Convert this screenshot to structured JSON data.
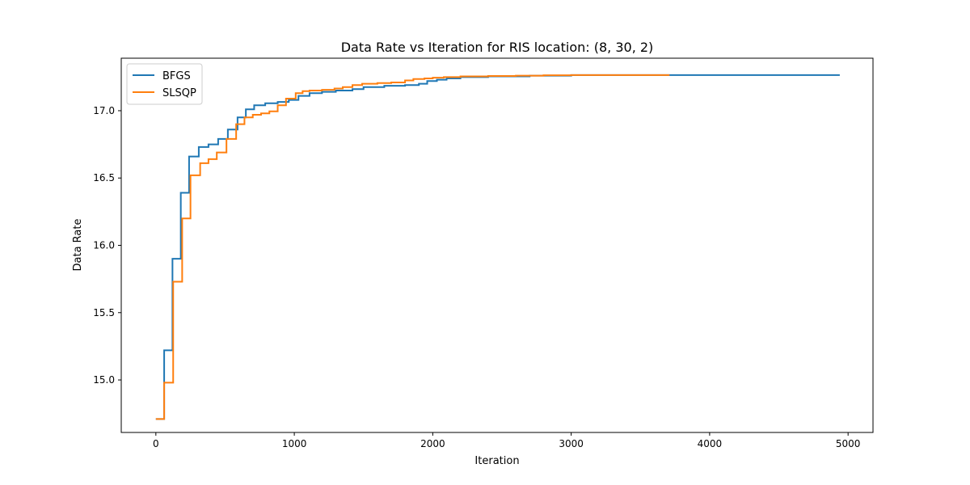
{
  "chart_data": {
    "type": "line",
    "title": "Data Rate vs Iteration for RIS location: (8, 30, 2)",
    "xlabel": "Iteration",
    "ylabel": "Data Rate",
    "xlim": [
      -250,
      5180
    ],
    "ylim": [
      14.61,
      17.39
    ],
    "xticks": [
      0,
      1000,
      2000,
      3000,
      4000,
      5000
    ],
    "yticks": [
      15.0,
      15.5,
      16.0,
      16.5,
      17.0
    ],
    "xtick_labels": [
      "0",
      "1000",
      "2000",
      "3000",
      "4000",
      "5000"
    ],
    "ytick_labels": [
      "15.0",
      "15.5",
      "16.0",
      "16.5",
      "17.0"
    ],
    "grid": false,
    "legend_position": "top-left",
    "line_style": "steps-post",
    "series": [
      {
        "name": "BFGS",
        "color": "#1f77b4",
        "x": [
          0,
          60,
          120,
          180,
          240,
          310,
          380,
          450,
          520,
          590,
          650,
          710,
          790,
          880,
          960,
          1030,
          1110,
          1200,
          1300,
          1420,
          1500,
          1650,
          1800,
          1900,
          1960,
          2030,
          2100,
          2200,
          2400,
          2700,
          3000,
          4940
        ],
        "y": [
          14.71,
          15.22,
          15.9,
          16.39,
          16.66,
          16.73,
          16.75,
          16.79,
          16.86,
          16.95,
          17.01,
          17.04,
          17.055,
          17.065,
          17.08,
          17.11,
          17.13,
          17.14,
          17.15,
          17.16,
          17.175,
          17.185,
          17.19,
          17.2,
          17.22,
          17.23,
          17.24,
          17.25,
          17.255,
          17.26,
          17.265,
          17.265
        ]
      },
      {
        "name": "SLSQP",
        "color": "#ff7f0e",
        "x": [
          0,
          60,
          125,
          145,
          190,
          250,
          320,
          380,
          440,
          510,
          580,
          640,
          700,
          760,
          820,
          880,
          940,
          1010,
          1060,
          1110,
          1200,
          1290,
          1350,
          1420,
          1490,
          1600,
          1700,
          1800,
          1860,
          1940,
          2000,
          2080,
          2200,
          2400,
          2600,
          2800,
          3000,
          3710
        ],
        "y": [
          14.71,
          14.98,
          15.73,
          15.73,
          16.2,
          16.52,
          16.61,
          16.64,
          16.69,
          16.79,
          16.9,
          16.95,
          16.97,
          16.98,
          16.995,
          17.04,
          17.09,
          17.13,
          17.145,
          17.15,
          17.155,
          17.165,
          17.175,
          17.19,
          17.2,
          17.205,
          17.21,
          17.225,
          17.235,
          17.24,
          17.245,
          17.25,
          17.255,
          17.258,
          17.26,
          17.263,
          17.265,
          17.265
        ]
      }
    ]
  }
}
